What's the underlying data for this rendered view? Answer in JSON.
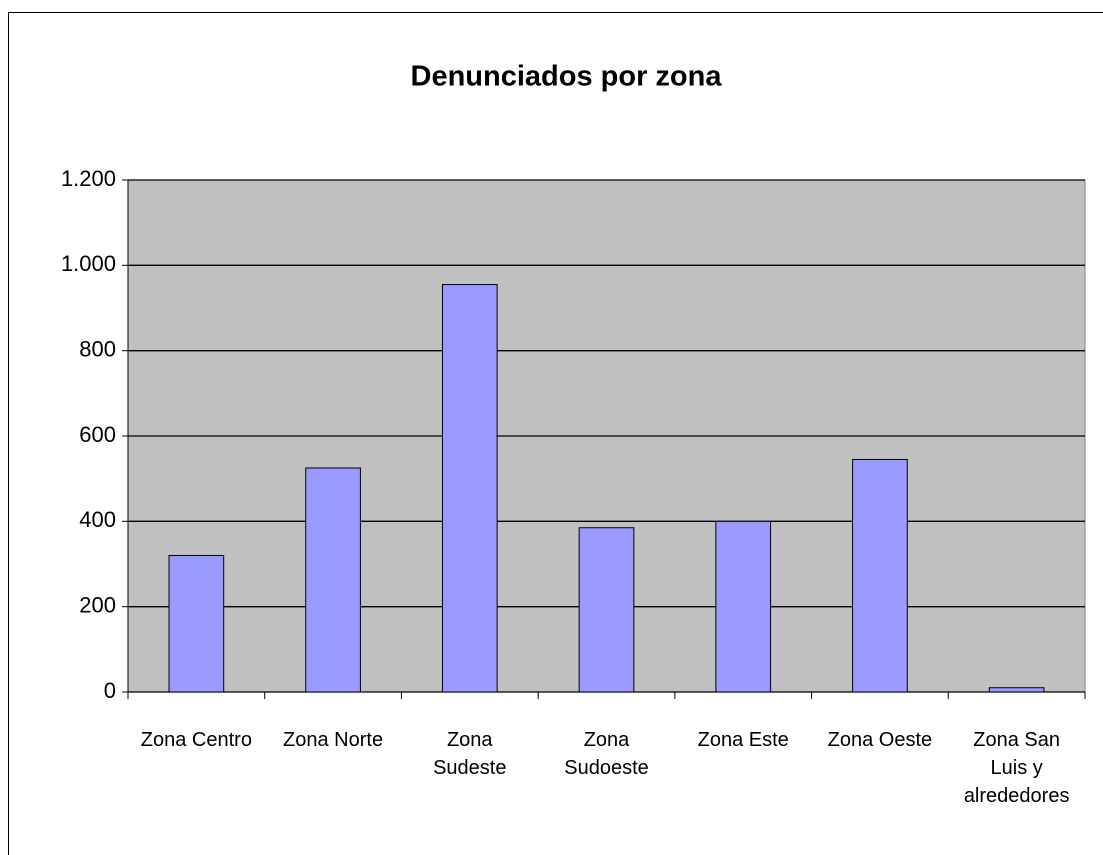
{
  "chart_data": {
    "type": "bar",
    "title": "Denunciados por zona",
    "categories": [
      "Zona Centro",
      "Zona Norte",
      "Zona\nSudeste",
      "Zona\nSudoeste",
      "Zona Este",
      "Zona Oeste",
      "Zona San\nLuis y\nalrededores"
    ],
    "values": [
      320,
      525,
      955,
      385,
      400,
      545,
      10
    ],
    "color": "#9999ff",
    "ylim": [
      0,
      1200
    ],
    "yticks": [
      0,
      200,
      400,
      600,
      800,
      {
        "value": 1000,
        "label": "1.000"
      },
      {
        "value": 1200,
        "label": "1.200"
      }
    ],
    "grid": true
  }
}
